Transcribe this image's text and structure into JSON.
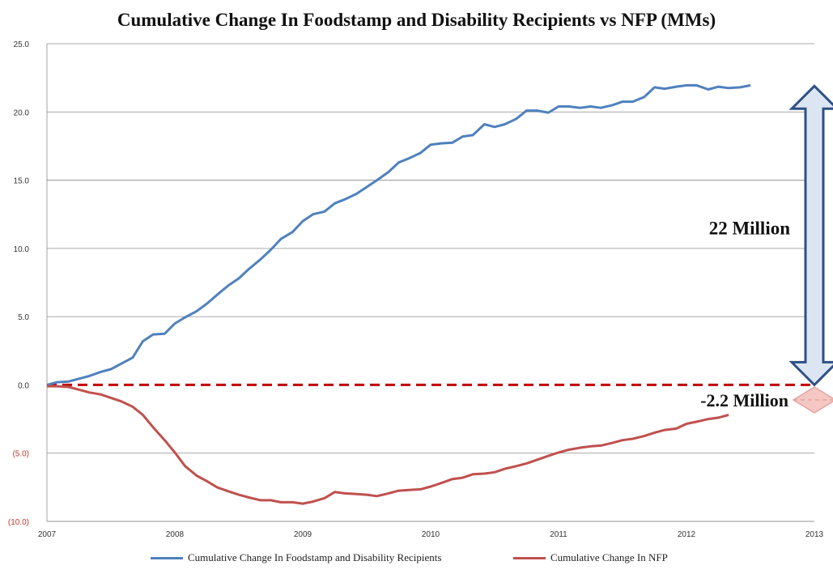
{
  "chart_data": {
    "type": "line",
    "title": "Cumulative Change In Foodstamp and Disability Recipients vs NFP (MMs)",
    "xlabel": "",
    "ylabel": "",
    "xlim": [
      2007,
      2013
    ],
    "ylim": [
      -10,
      25
    ],
    "y_ticks": [
      25,
      20,
      15,
      10,
      5,
      0,
      -5,
      -10
    ],
    "y_tick_labels": [
      "25.0",
      "20.0",
      "15.0",
      "10.0",
      "5.0",
      "0.0",
      "(5.0)",
      "(10.0)"
    ],
    "x_tick_labels": [
      "2007",
      "2008",
      "2009",
      "2010",
      "2011",
      "2012",
      "2013"
    ],
    "grid": true,
    "legend_position": "bottom",
    "colors": {
      "foodstamp": "#4f81bd",
      "nfp": "#c0504d",
      "positive_tick": "#333333",
      "negative_tick": "#c0392b",
      "zero_line": "#c00000"
    },
    "series": [
      {
        "name": "Cumulative Change In Foodstamp and Disability Recipients",
        "color": "#4f81bd",
        "points": [
          [
            2007.0,
            0.0
          ],
          [
            2007.08,
            0.2
          ],
          [
            2007.17,
            0.25
          ],
          [
            2007.25,
            0.45
          ],
          [
            2007.33,
            0.65
          ],
          [
            2007.42,
            0.95
          ],
          [
            2007.5,
            1.15
          ],
          [
            2007.58,
            1.55
          ],
          [
            2007.67,
            2.0
          ],
          [
            2007.75,
            3.2
          ],
          [
            2007.83,
            3.7
          ],
          [
            2007.92,
            3.75
          ],
          [
            2008.0,
            4.5
          ],
          [
            2008.08,
            4.95
          ],
          [
            2008.17,
            5.4
          ],
          [
            2008.25,
            5.95
          ],
          [
            2008.33,
            6.6
          ],
          [
            2008.42,
            7.3
          ],
          [
            2008.5,
            7.8
          ],
          [
            2008.58,
            8.5
          ],
          [
            2008.67,
            9.2
          ],
          [
            2008.75,
            9.9
          ],
          [
            2008.83,
            10.7
          ],
          [
            2008.92,
            11.2
          ],
          [
            2009.0,
            12.0
          ],
          [
            2009.08,
            12.5
          ],
          [
            2009.17,
            12.7
          ],
          [
            2009.25,
            13.3
          ],
          [
            2009.33,
            13.6
          ],
          [
            2009.42,
            14.0
          ],
          [
            2009.5,
            14.5
          ],
          [
            2009.58,
            15.0
          ],
          [
            2009.67,
            15.6
          ],
          [
            2009.75,
            16.3
          ],
          [
            2009.83,
            16.6
          ],
          [
            2009.92,
            17.0
          ],
          [
            2010.0,
            17.6
          ],
          [
            2010.08,
            17.7
          ],
          [
            2010.17,
            17.75
          ],
          [
            2010.25,
            18.2
          ],
          [
            2010.33,
            18.3
          ],
          [
            2010.42,
            19.1
          ],
          [
            2010.5,
            18.9
          ],
          [
            2010.58,
            19.1
          ],
          [
            2010.67,
            19.5
          ],
          [
            2010.75,
            20.1
          ],
          [
            2010.83,
            20.1
          ],
          [
            2010.92,
            19.95
          ],
          [
            2011.0,
            20.4
          ],
          [
            2011.08,
            20.4
          ],
          [
            2011.17,
            20.3
          ],
          [
            2011.25,
            20.4
          ],
          [
            2011.33,
            20.3
          ],
          [
            2011.42,
            20.5
          ],
          [
            2011.5,
            20.75
          ],
          [
            2011.58,
            20.75
          ],
          [
            2011.67,
            21.1
          ],
          [
            2011.75,
            21.8
          ],
          [
            2011.83,
            21.7
          ],
          [
            2011.92,
            21.85
          ],
          [
            2012.0,
            21.95
          ],
          [
            2012.08,
            21.95
          ],
          [
            2012.17,
            21.65
          ],
          [
            2012.25,
            21.85
          ],
          [
            2012.33,
            21.75
          ],
          [
            2012.42,
            21.8
          ],
          [
            2012.5,
            21.95
          ]
        ]
      },
      {
        "name": "Cumulative Change In NFP",
        "color": "#c0504d",
        "points": [
          [
            2007.0,
            -0.1
          ],
          [
            2007.08,
            -0.1
          ],
          [
            2007.17,
            -0.15
          ],
          [
            2007.25,
            -0.35
          ],
          [
            2007.33,
            -0.55
          ],
          [
            2007.42,
            -0.7
          ],
          [
            2007.5,
            -0.95
          ],
          [
            2007.58,
            -1.2
          ],
          [
            2007.67,
            -1.6
          ],
          [
            2007.75,
            -2.2
          ],
          [
            2007.83,
            -3.1
          ],
          [
            2007.92,
            -4.05
          ],
          [
            2008.0,
            -4.95
          ],
          [
            2008.08,
            -5.95
          ],
          [
            2008.17,
            -6.65
          ],
          [
            2008.25,
            -7.05
          ],
          [
            2008.33,
            -7.5
          ],
          [
            2008.42,
            -7.8
          ],
          [
            2008.5,
            -8.05
          ],
          [
            2008.58,
            -8.25
          ],
          [
            2008.67,
            -8.45
          ],
          [
            2008.75,
            -8.45
          ],
          [
            2008.83,
            -8.6
          ],
          [
            2008.92,
            -8.6
          ],
          [
            2009.0,
            -8.7
          ],
          [
            2009.08,
            -8.55
          ],
          [
            2009.17,
            -8.3
          ],
          [
            2009.25,
            -7.85
          ],
          [
            2009.33,
            -7.95
          ],
          [
            2009.42,
            -8.0
          ],
          [
            2009.5,
            -8.05
          ],
          [
            2009.58,
            -8.15
          ],
          [
            2009.67,
            -7.95
          ],
          [
            2009.75,
            -7.75
          ],
          [
            2009.83,
            -7.7
          ],
          [
            2009.92,
            -7.65
          ],
          [
            2010.0,
            -7.45
          ],
          [
            2010.08,
            -7.2
          ],
          [
            2010.17,
            -6.9
          ],
          [
            2010.25,
            -6.8
          ],
          [
            2010.33,
            -6.55
          ],
          [
            2010.42,
            -6.5
          ],
          [
            2010.5,
            -6.4
          ],
          [
            2010.58,
            -6.15
          ],
          [
            2010.67,
            -5.95
          ],
          [
            2010.75,
            -5.75
          ],
          [
            2010.83,
            -5.5
          ],
          [
            2010.92,
            -5.2
          ],
          [
            2011.0,
            -4.95
          ],
          [
            2011.08,
            -4.75
          ],
          [
            2011.17,
            -4.6
          ],
          [
            2011.25,
            -4.5
          ],
          [
            2011.33,
            -4.45
          ],
          [
            2011.42,
            -4.25
          ],
          [
            2011.5,
            -4.05
          ],
          [
            2011.58,
            -3.95
          ],
          [
            2011.67,
            -3.75
          ],
          [
            2011.75,
            -3.5
          ],
          [
            2011.83,
            -3.3
          ],
          [
            2011.92,
            -3.2
          ],
          [
            2012.0,
            -2.85
          ],
          [
            2012.08,
            -2.7
          ],
          [
            2012.17,
            -2.5
          ],
          [
            2012.25,
            -2.4
          ],
          [
            2012.33,
            -2.2
          ]
        ]
      }
    ],
    "annotations": [
      {
        "text": "22 Million",
        "at": [
          2012.5,
          11.5
        ],
        "arrow_from": 21.9,
        "arrow_to": 0.0
      },
      {
        "text": "-2.2 Million",
        "at": [
          2012.5,
          -1.5
        ],
        "marker_y": -1.1
      }
    ]
  }
}
